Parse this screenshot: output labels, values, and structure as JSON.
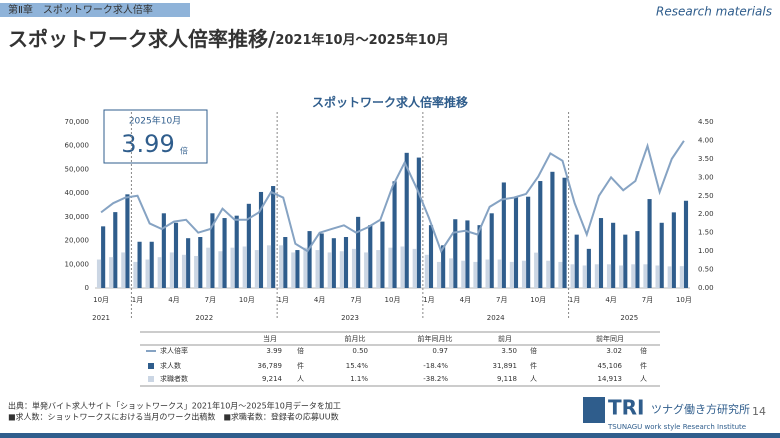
{
  "header": {
    "chapter": "第Ⅱ章　スポットワーク求人倍率",
    "corner": "Research materials",
    "title": "スポットワーク求人倍率推移/",
    "subtitle": "2021年10月～2025年10月"
  },
  "chart_data": {
    "type": "bar-line",
    "title": "スポットワーク求人倍率推移",
    "categories": [
      "10月",
      null,
      null,
      "1月",
      null,
      null,
      "4月",
      null,
      null,
      "7月",
      null,
      null,
      "10月",
      null,
      null,
      "1月",
      null,
      null,
      "4月",
      null,
      null,
      "7月",
      null,
      null,
      "10月",
      null,
      null,
      "1月",
      null,
      null,
      "4月",
      null,
      null,
      "7月",
      null,
      null,
      "10月",
      null,
      null,
      "1月",
      null,
      null,
      "4月",
      null,
      null,
      "7月",
      null,
      null,
      "10月"
    ],
    "years": [
      "2021",
      "2022",
      "2023",
      "2024",
      "2025"
    ],
    "series": [
      {
        "name": "求人倍率",
        "type": "line",
        "axis": "y2",
        "color": "#86a3c3",
        "values": [
          2.05,
          2.3,
          2.45,
          2.5,
          1.75,
          1.6,
          1.8,
          1.85,
          1.5,
          1.6,
          2.15,
          1.85,
          1.85,
          2.05,
          2.6,
          2.45,
          1.2,
          1.0,
          1.5,
          1.6,
          1.7,
          1.5,
          1.65,
          1.85,
          2.75,
          3.4,
          2.7,
          1.9,
          1.0,
          1.5,
          1.55,
          1.45,
          2.2,
          2.4,
          2.45,
          2.55,
          3.02,
          3.65,
          3.45,
          2.3,
          1.45,
          2.5,
          3.0,
          2.65,
          2.9,
          3.85,
          2.6,
          3.5,
          3.99
        ]
      },
      {
        "name": "求人数",
        "type": "bar",
        "color": "#2f5d8c",
        "values": [
          26000,
          32000,
          39500,
          19500,
          19500,
          31500,
          27500,
          21000,
          21500,
          31500,
          29500,
          30500,
          35500,
          40500,
          43000,
          21500,
          16000,
          24000,
          23000,
          21000,
          21500,
          30000,
          26500,
          28000,
          45000,
          57000,
          55000,
          26500,
          18000,
          29000,
          28500,
          26500,
          31500,
          44500,
          38500,
          38500,
          45106,
          49000,
          46500,
          22500,
          16500,
          29500,
          27500,
          22500,
          24000,
          37500,
          27500,
          31891,
          36789
        ]
      },
      {
        "name": "求職者数",
        "type": "bar",
        "color": "#cbd6e4",
        "values": [
          12000,
          13000,
          15000,
          11000,
          12000,
          13000,
          15000,
          14000,
          13500,
          17000,
          15500,
          17000,
          17500,
          16000,
          18000,
          18000,
          15000,
          17000,
          16000,
          15000,
          15500,
          16500,
          15000,
          16000,
          17000,
          17500,
          16500,
          14000,
          11000,
          12500,
          11500,
          11000,
          12000,
          12000,
          11000,
          11500,
          14913,
          11500,
          11000,
          10000,
          9500,
          10000,
          10000,
          9500,
          10000,
          10000,
          9500,
          9118,
          9214
        ]
      }
    ],
    "ylim": [
      0,
      70000
    ],
    "yticks": [
      0,
      {
        "value": 10000,
        "label": "10,000"
      },
      {
        "value": 20000,
        "label": "20,000"
      },
      {
        "value": 30000,
        "label": "30,000"
      },
      {
        "value": 40000,
        "label": "40,000"
      },
      {
        "value": 50000,
        "label": "50,000"
      },
      {
        "value": 60000,
        "label": "60,000"
      },
      {
        "value": 70000,
        "label": "70,000"
      }
    ],
    "y2lim": [
      0,
      4.5
    ],
    "y2ticks": [
      {
        "value": 0,
        "label": "0.00"
      },
      {
        "value": 0.5,
        "label": "0.50"
      },
      {
        "value": 1,
        "label": "1.00"
      },
      {
        "value": 1.5,
        "label": "1.50"
      },
      {
        "value": 2,
        "label": "2.00"
      },
      {
        "value": 2.5,
        "label": "2.50"
      },
      {
        "value": 3,
        "label": "3.00"
      },
      {
        "value": 3.5,
        "label": "3.50"
      },
      {
        "value": 4,
        "label": "4.00"
      },
      {
        "value": 4.5,
        "label": "4.50"
      }
    ],
    "callout": {
      "label": "2025年10月",
      "value": "3.99",
      "unit": "倍"
    }
  },
  "table": {
    "header": [
      "当月",
      "前月比",
      "前年同月比",
      "前月",
      "前年同月"
    ],
    "rows": [
      [
        "3.99",
        "倍",
        "0.50",
        "0.97",
        "3.50",
        "倍",
        "3.02",
        "倍"
      ],
      [
        "36,789",
        "件",
        "15.4%",
        "-18.4%",
        "31,891",
        "件",
        "45,106",
        "件"
      ],
      [
        "9,214",
        "人",
        "1.1%",
        "-38.2%",
        "9,118",
        "人",
        "14,913",
        "人"
      ]
    ]
  },
  "footer": {
    "source": "出典：単発バイト求人サイト「ショットワークス」2021年10月～2025年10月データを加工",
    "note": "■求人数：ショットワークスにおける当月のワーク出稿数　■求職者数：登録者の応募UU数",
    "logo": "TRI",
    "org": "ツナグ働き方研究所",
    "org_en": "TSUNAGU work style Research Institute",
    "page": "14"
  }
}
